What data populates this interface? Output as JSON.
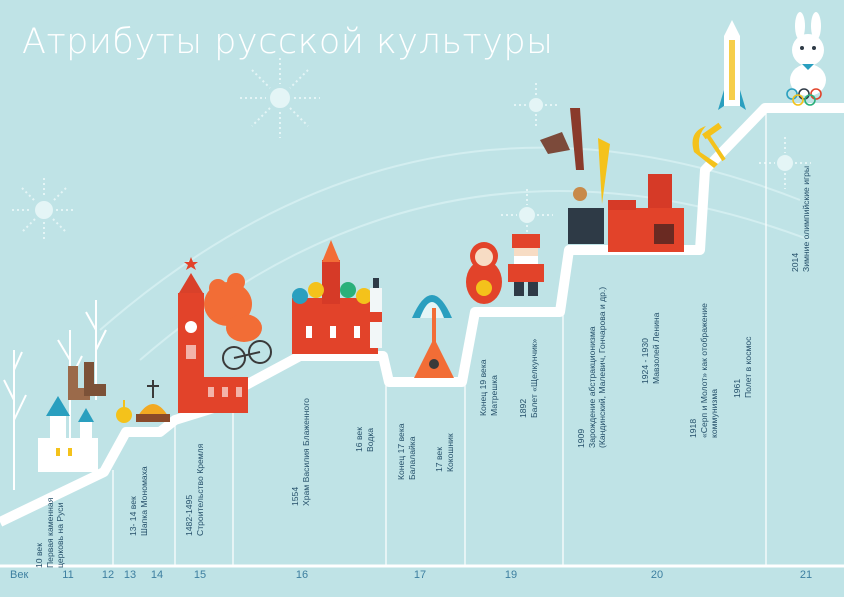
{
  "title": "Атрибуты русской культуры",
  "axis": {
    "label": "Век",
    "centuries": [
      "11",
      "12",
      "13",
      "14",
      "15",
      "16",
      "17",
      "19",
      "20",
      "21"
    ]
  },
  "events": [
    {
      "id": "church",
      "lines": [
        "10 век",
        "Первая каменная",
        "церковь на Руси"
      ]
    },
    {
      "id": "monomakh",
      "lines": [
        "13- 14 век",
        "Шапка Мономаха"
      ]
    },
    {
      "id": "kremlin",
      "lines": [
        "1482-1495",
        "Строительство Кремля"
      ]
    },
    {
      "id": "basil",
      "lines": [
        "1554",
        "Храм Василия Блаженного"
      ]
    },
    {
      "id": "vodka",
      "lines": [
        "16 век",
        "Водка"
      ]
    },
    {
      "id": "balalaika",
      "lines": [
        "Конец 17 века",
        "Балалайка"
      ]
    },
    {
      "id": "kokoshnik",
      "lines": [
        "17 век",
        "Кокошник"
      ]
    },
    {
      "id": "matryoshka",
      "lines": [
        "Конец 19 века",
        "Матрешка"
      ]
    },
    {
      "id": "nutcracker",
      "lines": [
        "1892",
        "Балет «Щелкунчик»"
      ]
    },
    {
      "id": "abstraction",
      "lines": [
        "1909",
        "Зарождение абстракционизма",
        "(Кандинский, Малевич, Гончарова и др.)"
      ]
    },
    {
      "id": "mausoleum",
      "lines": [
        "1924 - 1930",
        "Мавзолей Ленина"
      ]
    },
    {
      "id": "hammer",
      "lines": [
        "1918",
        "«Серп и Молот» как отображение",
        "коммунизма"
      ]
    },
    {
      "id": "space",
      "lines": [
        "1961",
        "Полет в космос"
      ]
    },
    {
      "id": "olympics",
      "lines": [
        "2014",
        "Зимние олимпийские игры"
      ]
    }
  ],
  "colors": {
    "background": "#bfe3e6",
    "stairs": "#ffffff",
    "text": "#25506a",
    "axis_text": "#3d7fa0",
    "red": "#e2432a",
    "orange": "#f26d36",
    "yellow": "#f4c21b",
    "teal": "#2a9fbf"
  }
}
